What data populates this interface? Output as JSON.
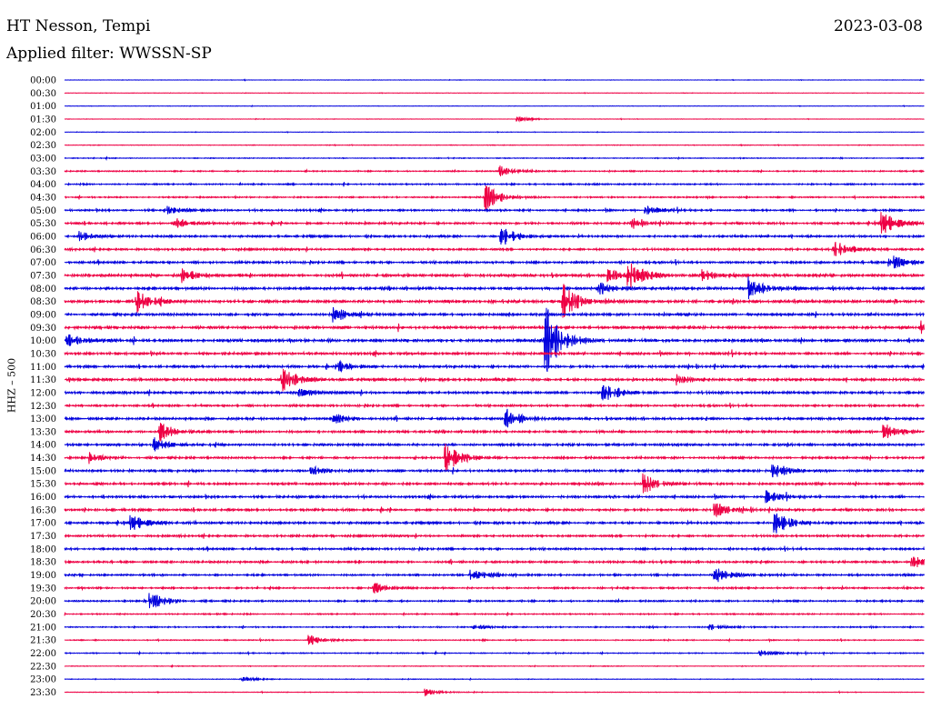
{
  "header": {
    "station": "HT Nesson, Tempi",
    "date": "2023-03-08",
    "filter": "Applied filter: WWSSN-SP"
  },
  "chart_data": {
    "type": "line",
    "title": "HT Nesson, Tempi",
    "subtitle": "Applied filter: WWSSN-SP",
    "ylabel": "HHZ – 500",
    "xlabel": "",
    "row_labels": [
      "00:00",
      "00:30",
      "01:00",
      "01:30",
      "02:00",
      "02:30",
      "03:00",
      "03:30",
      "04:00",
      "04:30",
      "05:00",
      "05:30",
      "06:00",
      "06:30",
      "07:00",
      "07:30",
      "08:00",
      "08:30",
      "09:00",
      "09:30",
      "10:00",
      "10:30",
      "11:00",
      "11:30",
      "12:00",
      "12:30",
      "13:00",
      "13:30",
      "14:00",
      "14:30",
      "15:00",
      "15:30",
      "16:00",
      "16:30",
      "17:00",
      "17:30",
      "18:00",
      "18:30",
      "19:00",
      "19:30",
      "20:00",
      "20:30",
      "21:00",
      "21:30",
      "22:00",
      "22:30",
      "23:00",
      "23:30"
    ],
    "row_minutes": 30,
    "colors": [
      "#0000dd",
      "#ee0044"
    ],
    "noise_level": [
      0.2,
      0.2,
      0.2,
      0.2,
      0.2,
      0.3,
      0.4,
      0.6,
      0.7,
      0.7,
      0.9,
      1.0,
      1.0,
      1.0,
      1.1,
      1.3,
      1.3,
      1.4,
      1.2,
      1.3,
      1.4,
      1.2,
      1.1,
      1.2,
      1.2,
      1.0,
      1.1,
      1.1,
      1.1,
      1.0,
      1.1,
      1.1,
      1.1,
      1.1,
      1.1,
      1.0,
      1.0,
      1.0,
      0.9,
      0.8,
      0.8,
      0.6,
      0.6,
      0.5,
      0.5,
      0.3,
      0.3,
      0.3
    ],
    "events": [
      {
        "row": 3,
        "minute": 15.8,
        "amp": 3
      },
      {
        "row": 7,
        "minute": 15.2,
        "amp": 6
      },
      {
        "row": 9,
        "minute": 14.7,
        "amp": 14
      },
      {
        "row": 10,
        "minute": 3.5,
        "amp": 5
      },
      {
        "row": 10,
        "minute": 20.3,
        "amp": 5
      },
      {
        "row": 11,
        "minute": 3.8,
        "amp": 6
      },
      {
        "row": 11,
        "minute": 19.8,
        "amp": 4
      },
      {
        "row": 11,
        "minute": 28.5,
        "amp": 14
      },
      {
        "row": 12,
        "minute": 0.5,
        "amp": 5
      },
      {
        "row": 12,
        "minute": 15.2,
        "amp": 14
      },
      {
        "row": 13,
        "minute": 26.8,
        "amp": 12
      },
      {
        "row": 14,
        "minute": 28.8,
        "amp": 10
      },
      {
        "row": 15,
        "minute": 4.1,
        "amp": 7
      },
      {
        "row": 15,
        "minute": 19.0,
        "amp": 7
      },
      {
        "row": 15,
        "minute": 19.7,
        "amp": 16
      },
      {
        "row": 15,
        "minute": 22.2,
        "amp": 7
      },
      {
        "row": 16,
        "minute": 23.9,
        "amp": 12
      },
      {
        "row": 16,
        "minute": 18.6,
        "amp": 8
      },
      {
        "row": 17,
        "minute": 2.5,
        "amp": 13
      },
      {
        "row": 17,
        "minute": 17.4,
        "amp": 20
      },
      {
        "row": 18,
        "minute": 9.4,
        "amp": 10
      },
      {
        "row": 19,
        "minute": 29.9,
        "amp": 7
      },
      {
        "row": 20,
        "minute": 0.1,
        "amp": 9
      },
      {
        "row": 20,
        "minute": 16.8,
        "amp": 40
      },
      {
        "row": 22,
        "minute": 9.6,
        "amp": 6
      },
      {
        "row": 23,
        "minute": 7.6,
        "amp": 13
      },
      {
        "row": 23,
        "minute": 21.4,
        "amp": 6
      },
      {
        "row": 24,
        "minute": 18.8,
        "amp": 13
      },
      {
        "row": 24,
        "minute": 8.2,
        "amp": 4
      },
      {
        "row": 26,
        "minute": 15.4,
        "amp": 11
      },
      {
        "row": 26,
        "minute": 9.4,
        "amp": 6
      },
      {
        "row": 27,
        "minute": 3.3,
        "amp": 11
      },
      {
        "row": 27,
        "minute": 28.6,
        "amp": 8
      },
      {
        "row": 28,
        "minute": 3.1,
        "amp": 8
      },
      {
        "row": 29,
        "minute": 13.3,
        "amp": 17
      },
      {
        "row": 29,
        "minute": 0.9,
        "amp": 5
      },
      {
        "row": 30,
        "minute": 24.7,
        "amp": 10
      },
      {
        "row": 30,
        "minute": 8.6,
        "amp": 5
      },
      {
        "row": 31,
        "minute": 20.2,
        "amp": 12
      },
      {
        "row": 32,
        "minute": 24.5,
        "amp": 7
      },
      {
        "row": 33,
        "minute": 22.7,
        "amp": 8
      },
      {
        "row": 34,
        "minute": 24.8,
        "amp": 14
      },
      {
        "row": 34,
        "minute": 2.3,
        "amp": 9
      },
      {
        "row": 37,
        "minute": 29.6,
        "amp": 7
      },
      {
        "row": 38,
        "minute": 22.7,
        "amp": 10
      },
      {
        "row": 38,
        "minute": 14.2,
        "amp": 6
      },
      {
        "row": 39,
        "minute": 10.8,
        "amp": 6
      },
      {
        "row": 40,
        "minute": 3.0,
        "amp": 11
      },
      {
        "row": 42,
        "minute": 22.5,
        "amp": 4
      },
      {
        "row": 42,
        "minute": 14.3,
        "amp": 3
      },
      {
        "row": 43,
        "minute": 8.5,
        "amp": 6
      },
      {
        "row": 44,
        "minute": 24.3,
        "amp": 3
      },
      {
        "row": 46,
        "minute": 6.2,
        "amp": 3
      },
      {
        "row": 47,
        "minute": 12.6,
        "amp": 4
      }
    ]
  }
}
